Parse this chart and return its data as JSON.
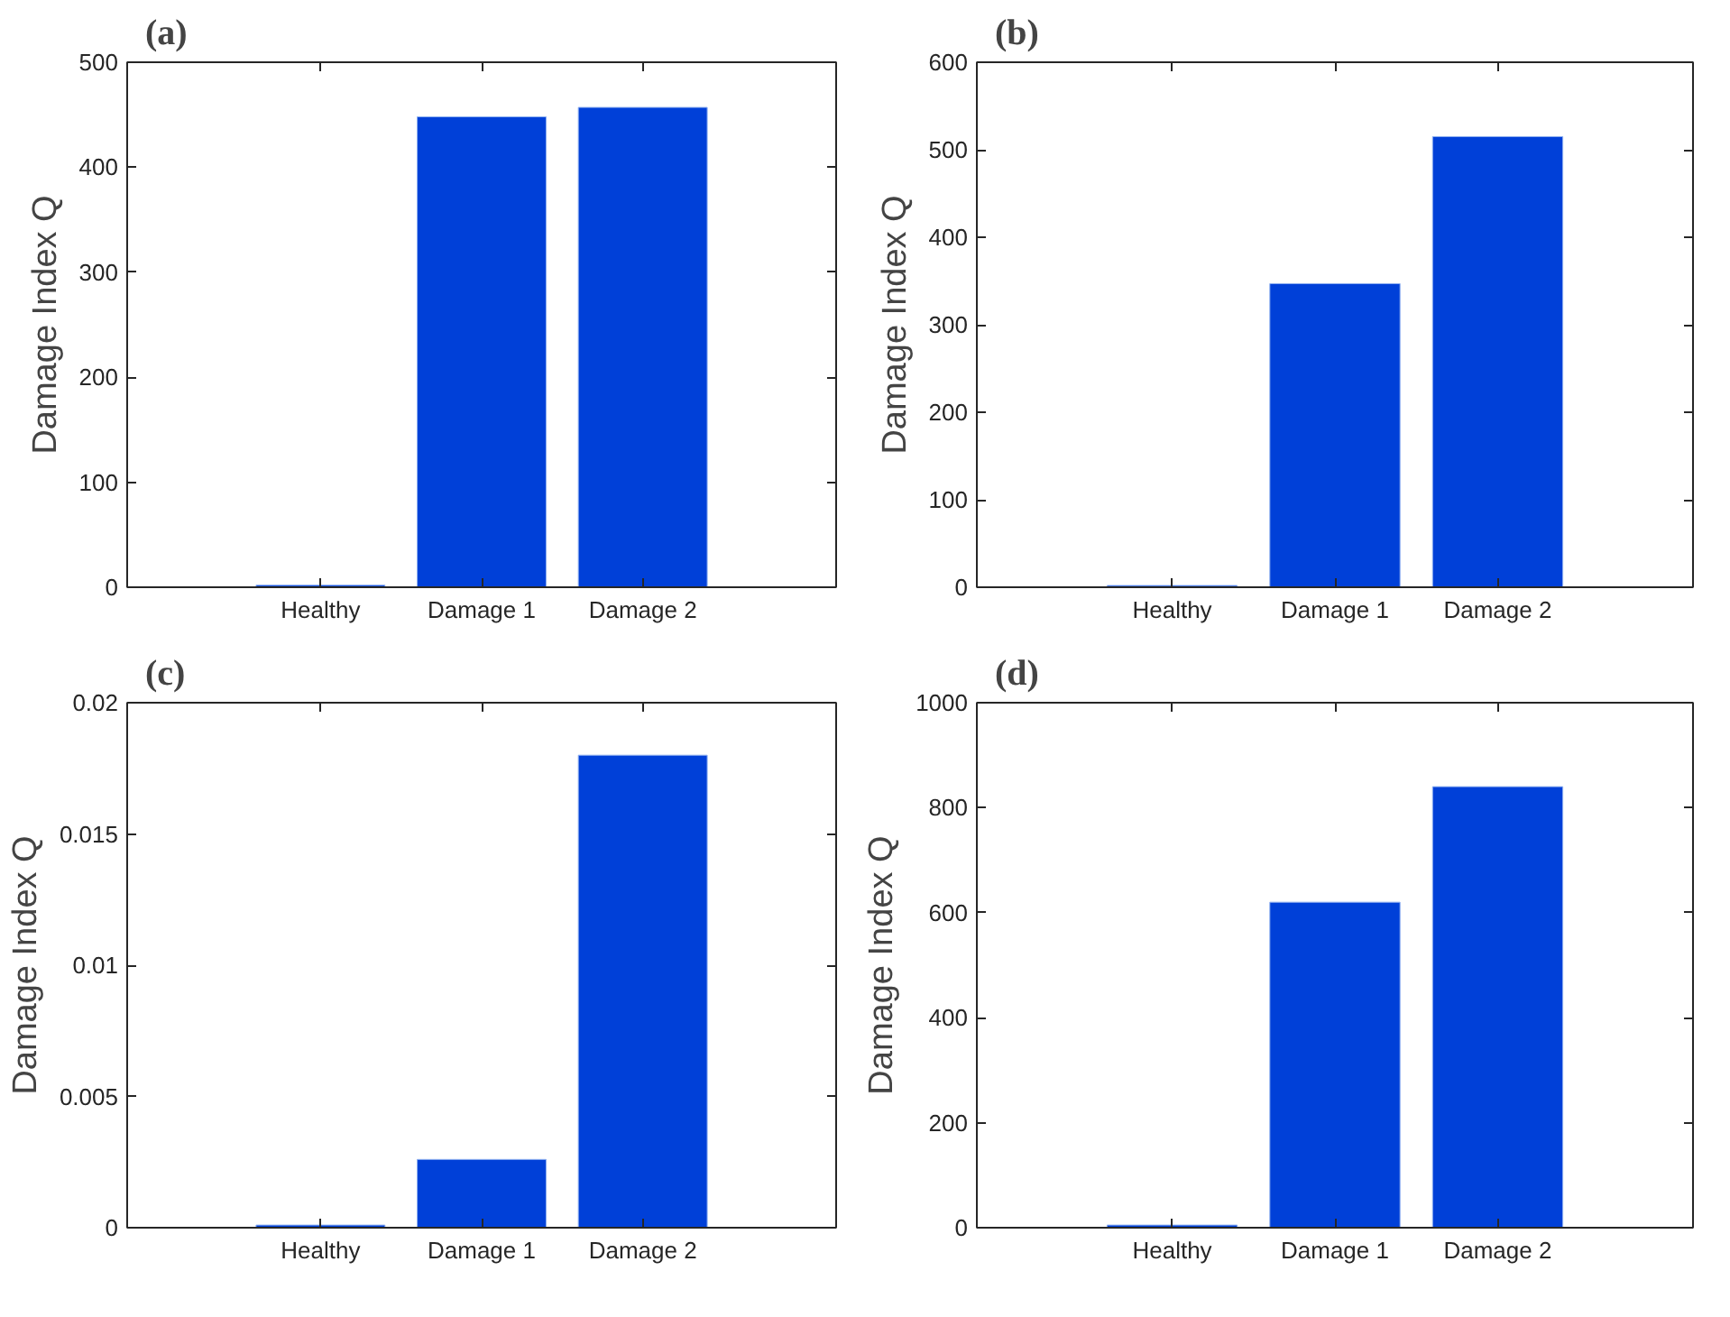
{
  "chart_data": [
    {
      "type": "bar",
      "title": "(a)",
      "ylabel": "Damage Index Q",
      "categories": [
        "Healthy",
        "Damage 1",
        "Damage 2"
      ],
      "values": [
        2,
        448,
        457
      ],
      "color": "#0040d8",
      "ylim": [
        0,
        500
      ],
      "yticks": [
        0,
        100,
        200,
        300,
        400,
        500
      ],
      "grid": false
    },
    {
      "type": "bar",
      "title": "(b)",
      "ylabel": "Damage Index Q",
      "categories": [
        "Healthy",
        "Damage 1",
        "Damage 2"
      ],
      "values": [
        2,
        347,
        515
      ],
      "color": "#0040d8",
      "ylim": [
        0,
        600
      ],
      "yticks": [
        0,
        100,
        200,
        300,
        400,
        500,
        600
      ],
      "grid": false
    },
    {
      "type": "bar",
      "title": "(c)",
      "ylabel": "Damage Index Q",
      "categories": [
        "Healthy",
        "Damage 1",
        "Damage 2"
      ],
      "values": [
        0.0001,
        0.0026,
        0.018
      ],
      "color": "#0040d8",
      "ylim": [
        0,
        0.02
      ],
      "yticks": [
        0,
        0.005,
        0.01,
        0.015,
        0.02
      ],
      "grid": false
    },
    {
      "type": "bar",
      "title": "(d)",
      "ylabel": "Damage Index Q",
      "categories": [
        "Healthy",
        "Damage 1",
        "Damage 2"
      ],
      "values": [
        5,
        620,
        840
      ],
      "color": "#0040d8",
      "ylim": [
        0,
        1000
      ],
      "yticks": [
        0,
        200,
        400,
        600,
        800,
        1000
      ],
      "grid": false
    }
  ]
}
